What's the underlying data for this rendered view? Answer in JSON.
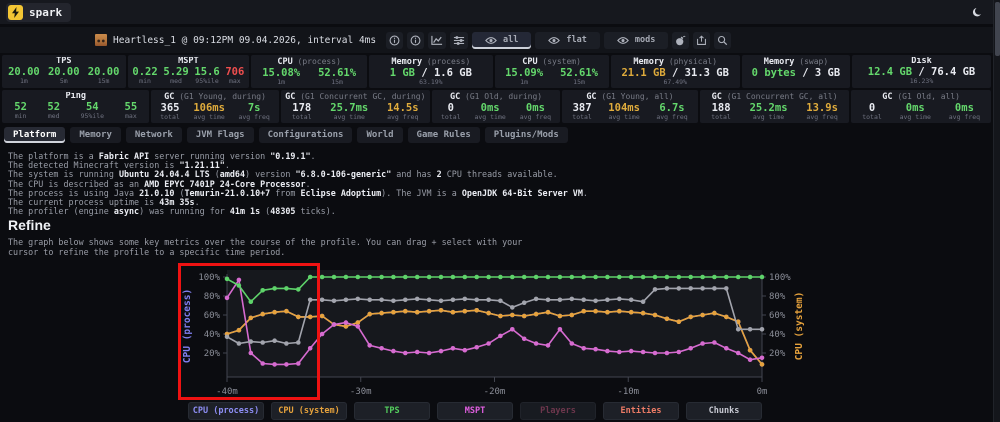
{
  "colors": {
    "green": "#64d86c",
    "yellow": "#e0ac3c",
    "red": "#ef4e4e",
    "white": "#e9ebf1",
    "accent_brand": "#f3c634",
    "panel_bg": "#181a21",
    "page_bg": "#0b0c10",
    "cpu_process": "#8e8ef5",
    "cpu_system": "#e6a23c",
    "tps": "#5ed36a",
    "mspt": "#d66bd0",
    "players_dim": "#8d4560",
    "entities": "#ee7c66",
    "chunks": "#c7c9d2",
    "annotation_red": "#ee1212"
  },
  "topbar": {
    "brand": "spark"
  },
  "infobar": {
    "title": "Heartless_1 @ 09:12PM 09.04.2026, interval 4ms",
    "toolbar": [
      {
        "icon": "info",
        "name": "info-button"
      },
      {
        "icon": "info",
        "name": "metadata-button"
      },
      {
        "icon": "graph",
        "name": "graph-button"
      },
      {
        "icon": "sliders",
        "name": "controls-button"
      },
      {
        "icon": "eye",
        "label": "all",
        "active": true,
        "name": "view-all-button"
      },
      {
        "icon": "eye",
        "label": "flat",
        "active": false,
        "name": "view-flat-button"
      },
      {
        "icon": "eye",
        "label": "mods",
        "active": false,
        "name": "view-mods-button"
      },
      {
        "icon": "bomb",
        "name": "bomb-button"
      },
      {
        "icon": "export",
        "name": "export-button"
      },
      {
        "icon": "search",
        "name": "search-button"
      }
    ]
  },
  "stats_row1": [
    {
      "name": "TPS",
      "paren": "",
      "cells": [
        {
          "v": "20.00",
          "c": "green",
          "l": "1m"
        },
        {
          "v": "20.00",
          "c": "green",
          "l": "5m"
        },
        {
          "v": "20.00",
          "c": "green",
          "l": "15m"
        }
      ]
    },
    {
      "name": "MSPT",
      "paren": "",
      "cells": [
        {
          "v": "0.22",
          "c": "green",
          "l": "min"
        },
        {
          "v": "5.29",
          "c": "green",
          "l": "med"
        },
        {
          "v": "15.6",
          "c": "green",
          "l": "95%ile"
        },
        {
          "v": "706",
          "c": "red",
          "l": "max"
        }
      ]
    },
    {
      "name": "CPU",
      "paren": "(process)",
      "cells": [
        {
          "v": "15.08%",
          "c": "green",
          "l": "1m"
        },
        {
          "v": "52.61%",
          "c": "green",
          "l": "15m"
        }
      ]
    },
    {
      "name": "Memory",
      "paren": "(process)",
      "cells": [
        {
          "v": "1 GB",
          "v2": " / 1.6 GB",
          "c": "green",
          "l": "63.19%"
        }
      ]
    },
    {
      "name": "CPU",
      "paren": "(system)",
      "cells": [
        {
          "v": "15.09%",
          "c": "green",
          "l": "1m"
        },
        {
          "v": "52.61%",
          "c": "green",
          "l": "15m"
        }
      ]
    },
    {
      "name": "Memory",
      "paren": "(physical)",
      "cells": [
        {
          "v": "21.1 GB",
          "v2": " / 31.3 GB",
          "c": "yellow",
          "l": "67.49%"
        }
      ]
    },
    {
      "name": "Memory",
      "paren": "(swap)",
      "cells": [
        {
          "v": "0 bytes",
          "v2": " / 3 GB",
          "c": "green",
          "l": ""
        }
      ]
    },
    {
      "name": "Disk",
      "paren": "",
      "cells": [
        {
          "v": "12.4 GB",
          "v2": " / 76.4 GB",
          "c": "green",
          "l": "16.23%"
        }
      ]
    }
  ],
  "stats_row2": [
    {
      "name": "Ping",
      "paren": "",
      "cells": [
        {
          "v": "52",
          "c": "green",
          "l": "min"
        },
        {
          "v": "52",
          "c": "green",
          "l": "med"
        },
        {
          "v": "54",
          "c": "green",
          "l": "95%ile"
        },
        {
          "v": "55",
          "c": "green",
          "l": "max"
        }
      ]
    },
    {
      "name": "GC",
      "paren": "(G1 Young, during)",
      "cells": [
        {
          "v": "365",
          "c": "white",
          "l": "total"
        },
        {
          "v": "106ms",
          "c": "yellow",
          "l": "avg time"
        },
        {
          "v": "7s",
          "c": "green",
          "l": "avg freq"
        }
      ]
    },
    {
      "name": "GC",
      "paren": "(G1 Concurrent GC, during)",
      "cells": [
        {
          "v": "178",
          "c": "white",
          "l": "total"
        },
        {
          "v": "25.7ms",
          "c": "green",
          "l": "avg time"
        },
        {
          "v": "14.5s",
          "c": "yellow",
          "l": "avg freq"
        }
      ]
    },
    {
      "name": "GC",
      "paren": "(G1 Old, during)",
      "cells": [
        {
          "v": "0",
          "c": "white",
          "l": "total"
        },
        {
          "v": "0ms",
          "c": "green",
          "l": "avg time"
        },
        {
          "v": "0ms",
          "c": "green",
          "l": "avg freq"
        }
      ]
    },
    {
      "name": "GC",
      "paren": "(G1 Young, all)",
      "cells": [
        {
          "v": "387",
          "c": "white",
          "l": "total"
        },
        {
          "v": "104ms",
          "c": "yellow",
          "l": "avg time"
        },
        {
          "v": "6.7s",
          "c": "green",
          "l": "avg freq"
        }
      ]
    },
    {
      "name": "GC",
      "paren": "(G1 Concurrent GC, all)",
      "cells": [
        {
          "v": "188",
          "c": "white",
          "l": "total"
        },
        {
          "v": "25.2ms",
          "c": "green",
          "l": "avg time"
        },
        {
          "v": "13.9s",
          "c": "yellow",
          "l": "avg freq"
        }
      ]
    },
    {
      "name": "GC",
      "paren": "(G1 Old, all)",
      "cells": [
        {
          "v": "0",
          "c": "white",
          "l": "total"
        },
        {
          "v": "0ms",
          "c": "green",
          "l": "avg time"
        },
        {
          "v": "0ms",
          "c": "green",
          "l": "avg freq"
        }
      ]
    }
  ],
  "tabs": [
    {
      "label": "Platform",
      "active": true
    },
    {
      "label": "Memory",
      "active": false
    },
    {
      "label": "Network",
      "active": false
    },
    {
      "label": "JVM Flags",
      "active": false
    },
    {
      "label": "Configurations",
      "active": false
    },
    {
      "label": "World",
      "active": false
    },
    {
      "label": "Game Rules",
      "active": false
    },
    {
      "label": "Plugins/Mods",
      "active": false
    }
  ],
  "platform_lines": [
    [
      {
        "t": "The platform is a "
      },
      {
        "t": "Fabric API",
        "b": true
      },
      {
        "t": " server running version "
      },
      {
        "t": "\"0.19.1\"",
        "b": true
      },
      {
        "t": "."
      }
    ],
    [
      {
        "t": "The detected Minecraft version is "
      },
      {
        "t": "\"1.21.11\"",
        "b": true
      },
      {
        "t": "."
      }
    ],
    [
      {
        "t": "The system is running "
      },
      {
        "t": "Ubuntu 24.04.4 LTS",
        "b": true
      },
      {
        "t": " ("
      },
      {
        "t": "amd64",
        "b": true
      },
      {
        "t": ") version "
      },
      {
        "t": "\"6.8.0-106-generic\"",
        "b": true
      },
      {
        "t": " and has "
      },
      {
        "t": "2",
        "b": true
      },
      {
        "t": " CPU threads available."
      }
    ],
    [
      {
        "t": "The CPU is described as an "
      },
      {
        "t": "AMD EPYC 7401P 24-Core Processor",
        "b": true
      },
      {
        "t": "."
      }
    ],
    [
      {
        "t": "The process is using Java "
      },
      {
        "t": "21.0.10",
        "b": true
      },
      {
        "t": " ("
      },
      {
        "t": "Temurin-21.0.10+7",
        "b": true
      },
      {
        "t": " from "
      },
      {
        "t": "Eclipse Adoptium",
        "b": true
      },
      {
        "t": "). The JVM is a "
      },
      {
        "t": "OpenJDK 64-Bit Server VM",
        "b": true
      },
      {
        "t": "."
      }
    ],
    [
      {
        "t": "The current process uptime is "
      },
      {
        "t": "43m 35s",
        "b": true
      },
      {
        "t": "."
      }
    ],
    [
      {
        "t": "The profiler (engine "
      },
      {
        "t": "async",
        "b": true
      },
      {
        "t": ") was running for "
      },
      {
        "t": "41m 1s",
        "b": true
      },
      {
        "t": " ("
      },
      {
        "t": "48305",
        "b": true
      },
      {
        "t": " ticks)."
      }
    ]
  ],
  "refine": {
    "heading": "Refine",
    "desc1": "The graph below shows some key metrics over the course of the profile. You can drag + select with your",
    "desc2": "cursor to refine the profile to a specific time period."
  },
  "chart_data": {
    "type": "line",
    "x_ticks": [
      "-40m",
      "-30m",
      "-20m",
      "-10m",
      "0m"
    ],
    "x_range_minutes": [
      -40,
      0
    ],
    "ylim": [
      0,
      100
    ],
    "grid": false,
    "left_axis": {
      "label": "CPU (process)",
      "color": "#8080f0",
      "ticks": [
        "100%",
        "80%",
        "60%",
        "40%",
        "20%"
      ],
      "tick_values": [
        100,
        80,
        60,
        40,
        20
      ]
    },
    "right_axis": {
      "label": "CPU (system)",
      "color": "#e6a23c",
      "ticks": [
        "100%",
        "80%",
        "60%",
        "40%",
        "20%"
      ],
      "tick_values": [
        100,
        80,
        60,
        40,
        20
      ]
    },
    "annotation": {
      "type": "red-rectangle",
      "region": "leftmost ~7 minutes of profile (-40m to ~-33m)"
    },
    "series": [
      {
        "name": "CPU (process)",
        "color": "#8e8ef5",
        "note": "overlaps CPU (system) line almost exactly",
        "values": [
          40,
          44,
          57,
          61,
          63,
          64,
          58,
          58,
          59,
          50,
          48,
          52,
          61,
          62,
          63,
          64,
          63,
          64,
          65,
          63,
          64,
          65,
          62,
          59,
          60,
          59,
          61,
          63,
          59,
          60,
          64,
          64,
          63,
          64,
          63,
          62,
          60,
          56,
          53,
          58,
          60,
          62,
          58,
          53,
          23,
          8
        ]
      },
      {
        "name": "CPU (system)",
        "color": "#e6a23c",
        "values": [
          40,
          44,
          57,
          61,
          63,
          64,
          58,
          58,
          59,
          50,
          48,
          52,
          61,
          62,
          63,
          64,
          63,
          64,
          65,
          63,
          64,
          65,
          62,
          59,
          60,
          59,
          61,
          63,
          59,
          60,
          64,
          64,
          63,
          64,
          63,
          62,
          60,
          56,
          53,
          58,
          60,
          62,
          58,
          53,
          23,
          8
        ]
      },
      {
        "name": "MSPT",
        "color": "#d66bd0",
        "values": [
          78,
          97,
          20,
          9,
          8,
          8,
          9,
          25,
          40,
          50,
          52,
          48,
          28,
          25,
          22,
          20,
          21,
          20,
          22,
          25,
          23,
          26,
          30,
          38,
          45,
          35,
          30,
          28,
          45,
          30,
          25,
          24,
          22,
          21,
          22,
          21,
          20,
          20,
          21,
          25,
          30,
          31,
          25,
          20,
          13,
          15
        ]
      },
      {
        "name": "Chunks",
        "color": "#a2a4ad",
        "values": [
          37,
          30,
          32,
          31,
          33,
          30,
          31,
          76,
          76,
          75,
          76,
          77,
          76,
          76,
          75,
          76,
          77,
          76,
          75,
          76,
          77,
          76,
          76,
          75,
          68,
          73,
          77,
          76,
          76,
          77,
          76,
          75,
          76,
          77,
          76,
          74,
          87,
          88,
          88,
          88,
          88,
          88,
          88,
          45,
          45,
          45
        ]
      },
      {
        "name": "TPS",
        "color": "#5ed36a",
        "values": [
          98,
          91,
          74,
          86,
          88,
          88,
          87,
          100,
          100,
          100,
          100,
          100,
          100,
          100,
          100,
          100,
          100,
          100,
          100,
          100,
          100,
          100,
          100,
          100,
          100,
          100,
          100,
          100,
          100,
          100,
          100,
          100,
          100,
          100,
          100,
          100,
          100,
          100,
          100,
          100,
          100,
          100,
          100,
          100,
          100,
          100
        ]
      }
    ]
  },
  "legend": [
    {
      "label": "CPU (process)",
      "color": "#8e8ef5",
      "dim": false
    },
    {
      "label": "CPU (system)",
      "color": "#e6a23c",
      "dim": false
    },
    {
      "label": "TPS",
      "color": "#54d05e",
      "dim": false
    },
    {
      "label": "MSPT",
      "color": "#e25fe2",
      "dim": false
    },
    {
      "label": "Players",
      "color": "#8d4560",
      "dim": true
    },
    {
      "label": "Entities",
      "color": "#ee7c66",
      "dim": false
    },
    {
      "label": "Chunks",
      "color": "#c7c9d2",
      "dim": false
    }
  ]
}
